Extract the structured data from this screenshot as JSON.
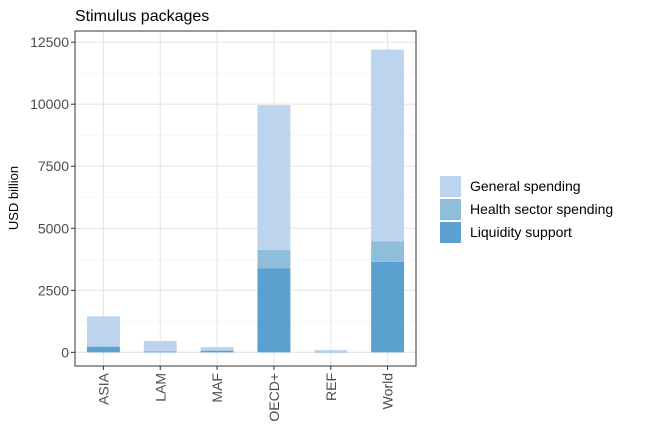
{
  "chart_data": {
    "type": "bar",
    "stacked": true,
    "title": "Stimulus packages",
    "xlabel": "",
    "ylabel": "USD billion",
    "categories": [
      "ASIA",
      "LAM",
      "MAF",
      "OECD+",
      "REF",
      "World"
    ],
    "ylim": [
      -550,
      12950
    ],
    "yticks": [
      0,
      2500,
      5000,
      7500,
      10000,
      12500
    ],
    "ytick_labels": [
      "0",
      "2500",
      "5000",
      "7500",
      "10000",
      "12500"
    ],
    "series": [
      {
        "name": "Liquidity support",
        "color": "#5BA1CF",
        "values": [
          220,
          30,
          70,
          3380,
          20,
          3650
        ]
      },
      {
        "name": "Health sector spending",
        "color": "#8FBEDD",
        "values": [
          30,
          20,
          10,
          750,
          10,
          820
        ]
      },
      {
        "name": "General spending",
        "color": "#BCD4EE",
        "values": [
          1200,
          410,
          130,
          5830,
          60,
          7730
        ]
      }
    ],
    "legend_order": [
      "General spending",
      "Health sector spending",
      "Liquidity support"
    ],
    "legend_position": "right",
    "grid": true
  }
}
